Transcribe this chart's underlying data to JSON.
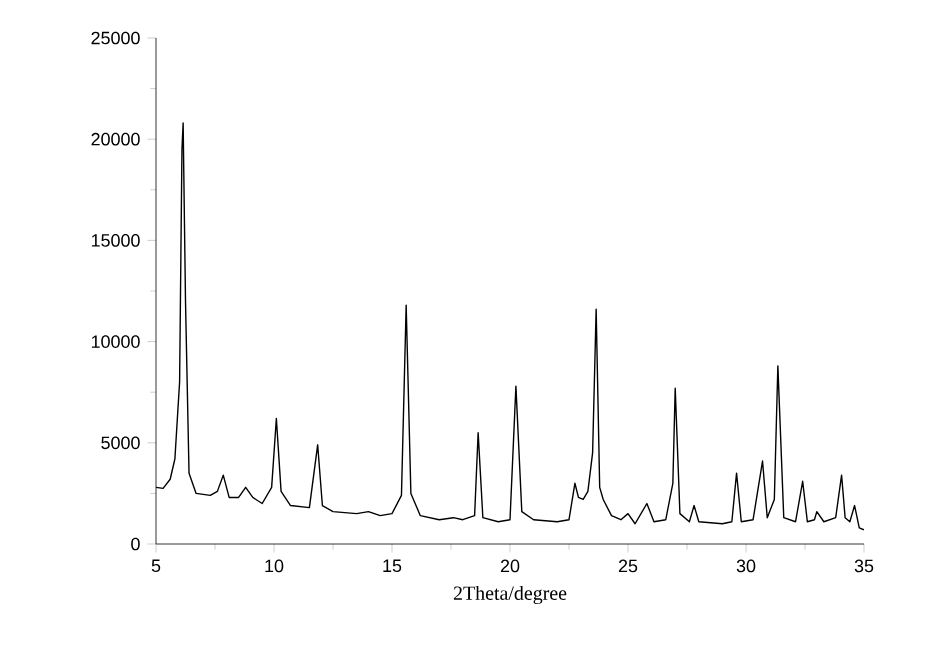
{
  "chart_data": {
    "type": "line",
    "xlabel": "2Theta/degree",
    "xlim": [
      5,
      35
    ],
    "xticks": [
      5,
      10,
      15,
      20,
      25,
      30,
      35
    ],
    "ylim": [
      0,
      25000
    ],
    "yticks": [
      0,
      5000,
      10000,
      15000,
      20000,
      25000
    ],
    "grid": false,
    "series": [
      {
        "color": "#000000",
        "x": [
          5.0,
          5.3,
          5.6,
          5.8,
          6.0,
          6.1,
          6.15,
          6.25,
          6.4,
          6.7,
          7.3,
          7.6,
          7.85,
          8.1,
          8.5,
          8.8,
          9.1,
          9.5,
          9.9,
          10.1,
          10.3,
          10.7,
          11.5,
          11.85,
          12.05,
          12.5,
          13.5,
          14.0,
          14.5,
          15.0,
          15.4,
          15.6,
          15.8,
          16.2,
          17.0,
          17.6,
          18.0,
          18.5,
          18.65,
          18.85,
          19.5,
          20.0,
          20.25,
          20.5,
          21.0,
          22.0,
          22.5,
          22.75,
          22.9,
          23.1,
          23.3,
          23.5,
          23.65,
          23.8,
          23.95,
          24.3,
          24.7,
          25.0,
          25.3,
          25.8,
          26.1,
          26.6,
          26.9,
          27.0,
          27.2,
          27.6,
          27.8,
          28.0,
          29.0,
          29.4,
          29.6,
          29.8,
          30.3,
          30.7,
          30.9,
          31.2,
          31.35,
          31.6,
          32.1,
          32.4,
          32.6,
          32.9,
          33.0,
          33.3,
          33.8,
          34.05,
          34.2,
          34.4,
          34.6,
          34.8,
          35.0
        ],
        "values": [
          2800,
          2750,
          3200,
          4200,
          8000,
          19500,
          20800,
          12000,
          3500,
          2500,
          2400,
          2600,
          3400,
          2300,
          2300,
          2800,
          2300,
          2000,
          2800,
          6200,
          2600,
          1900,
          1800,
          4900,
          1900,
          1600,
          1500,
          1600,
          1400,
          1500,
          2400,
          11800,
          2500,
          1400,
          1200,
          1300,
          1200,
          1400,
          5500,
          1300,
          1100,
          1200,
          7800,
          1600,
          1200,
          1100,
          1200,
          3000,
          2300,
          2200,
          2600,
          4500,
          11600,
          2800,
          2200,
          1400,
          1200,
          1500,
          1000,
          2000,
          1100,
          1200,
          3000,
          7700,
          1500,
          1100,
          1900,
          1100,
          1000,
          1100,
          3500,
          1100,
          1200,
          4100,
          1300,
          2200,
          8800,
          1300,
          1100,
          3100,
          1100,
          1200,
          1600,
          1100,
          1300,
          3400,
          1300,
          1100,
          1900,
          800,
          700
        ]
      }
    ]
  }
}
